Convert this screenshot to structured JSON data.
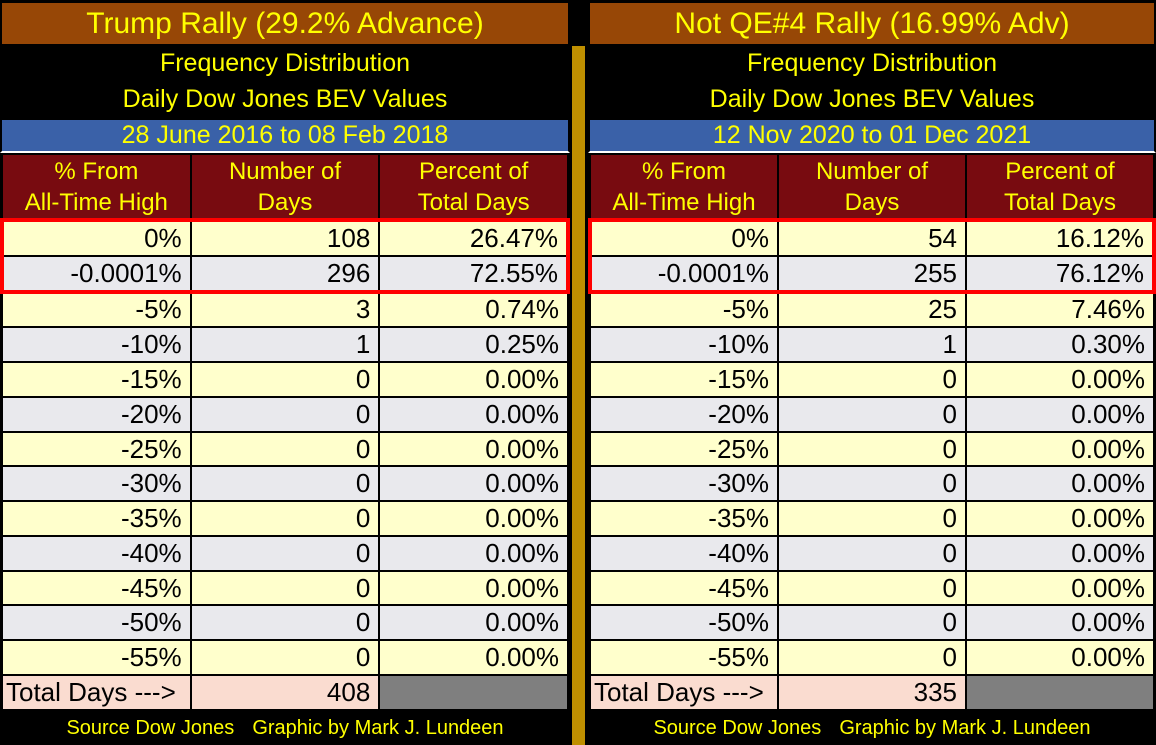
{
  "colors": {
    "title_bg": "#974706",
    "band_bg": "#000000",
    "date_bg": "#3A61A8",
    "header_bg": "#780B10",
    "row_cream": "#FFFFCC",
    "row_gray": "#E9E9ED",
    "total_bg": "#FADCD0",
    "total_empty_bg": "#7F7F7F",
    "divider_gold": "#BF8F00",
    "accent_text": "#FFFF00",
    "highlight_border": "#FF0000"
  },
  "chart_data": [
    {
      "type": "table",
      "title": "Trump Rally (29.2% Advance)",
      "subtitle_line1": "Frequency Distribution",
      "subtitle_line2": "Daily Dow Jones BEV Values",
      "date_range": "28 June 2016 to 08 Feb 2018",
      "col_headers": [
        {
          "line1": "% From",
          "line2": "All-Time High"
        },
        {
          "line1": "Number of",
          "line2": "Days"
        },
        {
          "line1": "Percent of",
          "line2": "Total Days"
        }
      ],
      "rows": [
        {
          "bev": "0%",
          "days": "108",
          "pct": "26.47%",
          "highlight": true
        },
        {
          "bev": "-0.0001%",
          "days": "296",
          "pct": "72.55%",
          "highlight": true
        },
        {
          "bev": "-5%",
          "days": "3",
          "pct": "0.74%"
        },
        {
          "bev": "-10%",
          "days": "1",
          "pct": "0.25%"
        },
        {
          "bev": "-15%",
          "days": "0",
          "pct": "0.00%"
        },
        {
          "bev": "-20%",
          "days": "0",
          "pct": "0.00%"
        },
        {
          "bev": "-25%",
          "days": "0",
          "pct": "0.00%"
        },
        {
          "bev": "-30%",
          "days": "0",
          "pct": "0.00%"
        },
        {
          "bev": "-35%",
          "days": "0",
          "pct": "0.00%"
        },
        {
          "bev": "-40%",
          "days": "0",
          "pct": "0.00%"
        },
        {
          "bev": "-45%",
          "days": "0",
          "pct": "0.00%"
        },
        {
          "bev": "-50%",
          "days": "0",
          "pct": "0.00%"
        },
        {
          "bev": "-55%",
          "days": "0",
          "pct": "0.00%"
        }
      ],
      "total_label": "Total Days --->",
      "total_days": "408",
      "source_left": "Source Dow Jones",
      "source_right": "Graphic by Mark J. Lundeen"
    },
    {
      "type": "table",
      "title": "Not QE#4 Rally (16.99% Adv)",
      "subtitle_line1": "Frequency Distribution",
      "subtitle_line2": "Daily Dow Jones BEV Values",
      "date_range": "12 Nov 2020 to 01 Dec 2021",
      "col_headers": [
        {
          "line1": "% From",
          "line2": "All-Time High"
        },
        {
          "line1": "Number of",
          "line2": "Days"
        },
        {
          "line1": "Percent of",
          "line2": "Total Days"
        }
      ],
      "rows": [
        {
          "bev": "0%",
          "days": "54",
          "pct": "16.12%",
          "highlight": true
        },
        {
          "bev": "-0.0001%",
          "days": "255",
          "pct": "76.12%",
          "highlight": true
        },
        {
          "bev": "-5%",
          "days": "25",
          "pct": "7.46%"
        },
        {
          "bev": "-10%",
          "days": "1",
          "pct": "0.30%"
        },
        {
          "bev": "-15%",
          "days": "0",
          "pct": "0.00%"
        },
        {
          "bev": "-20%",
          "days": "0",
          "pct": "0.00%"
        },
        {
          "bev": "-25%",
          "days": "0",
          "pct": "0.00%"
        },
        {
          "bev": "-30%",
          "days": "0",
          "pct": "0.00%"
        },
        {
          "bev": "-35%",
          "days": "0",
          "pct": "0.00%"
        },
        {
          "bev": "-40%",
          "days": "0",
          "pct": "0.00%"
        },
        {
          "bev": "-45%",
          "days": "0",
          "pct": "0.00%"
        },
        {
          "bev": "-50%",
          "days": "0",
          "pct": "0.00%"
        },
        {
          "bev": "-55%",
          "days": "0",
          "pct": "0.00%"
        }
      ],
      "total_label": "Total Days --->",
      "total_days": "335",
      "source_left": "Source Dow Jones",
      "source_right": "Graphic by Mark J. Lundeen"
    }
  ]
}
